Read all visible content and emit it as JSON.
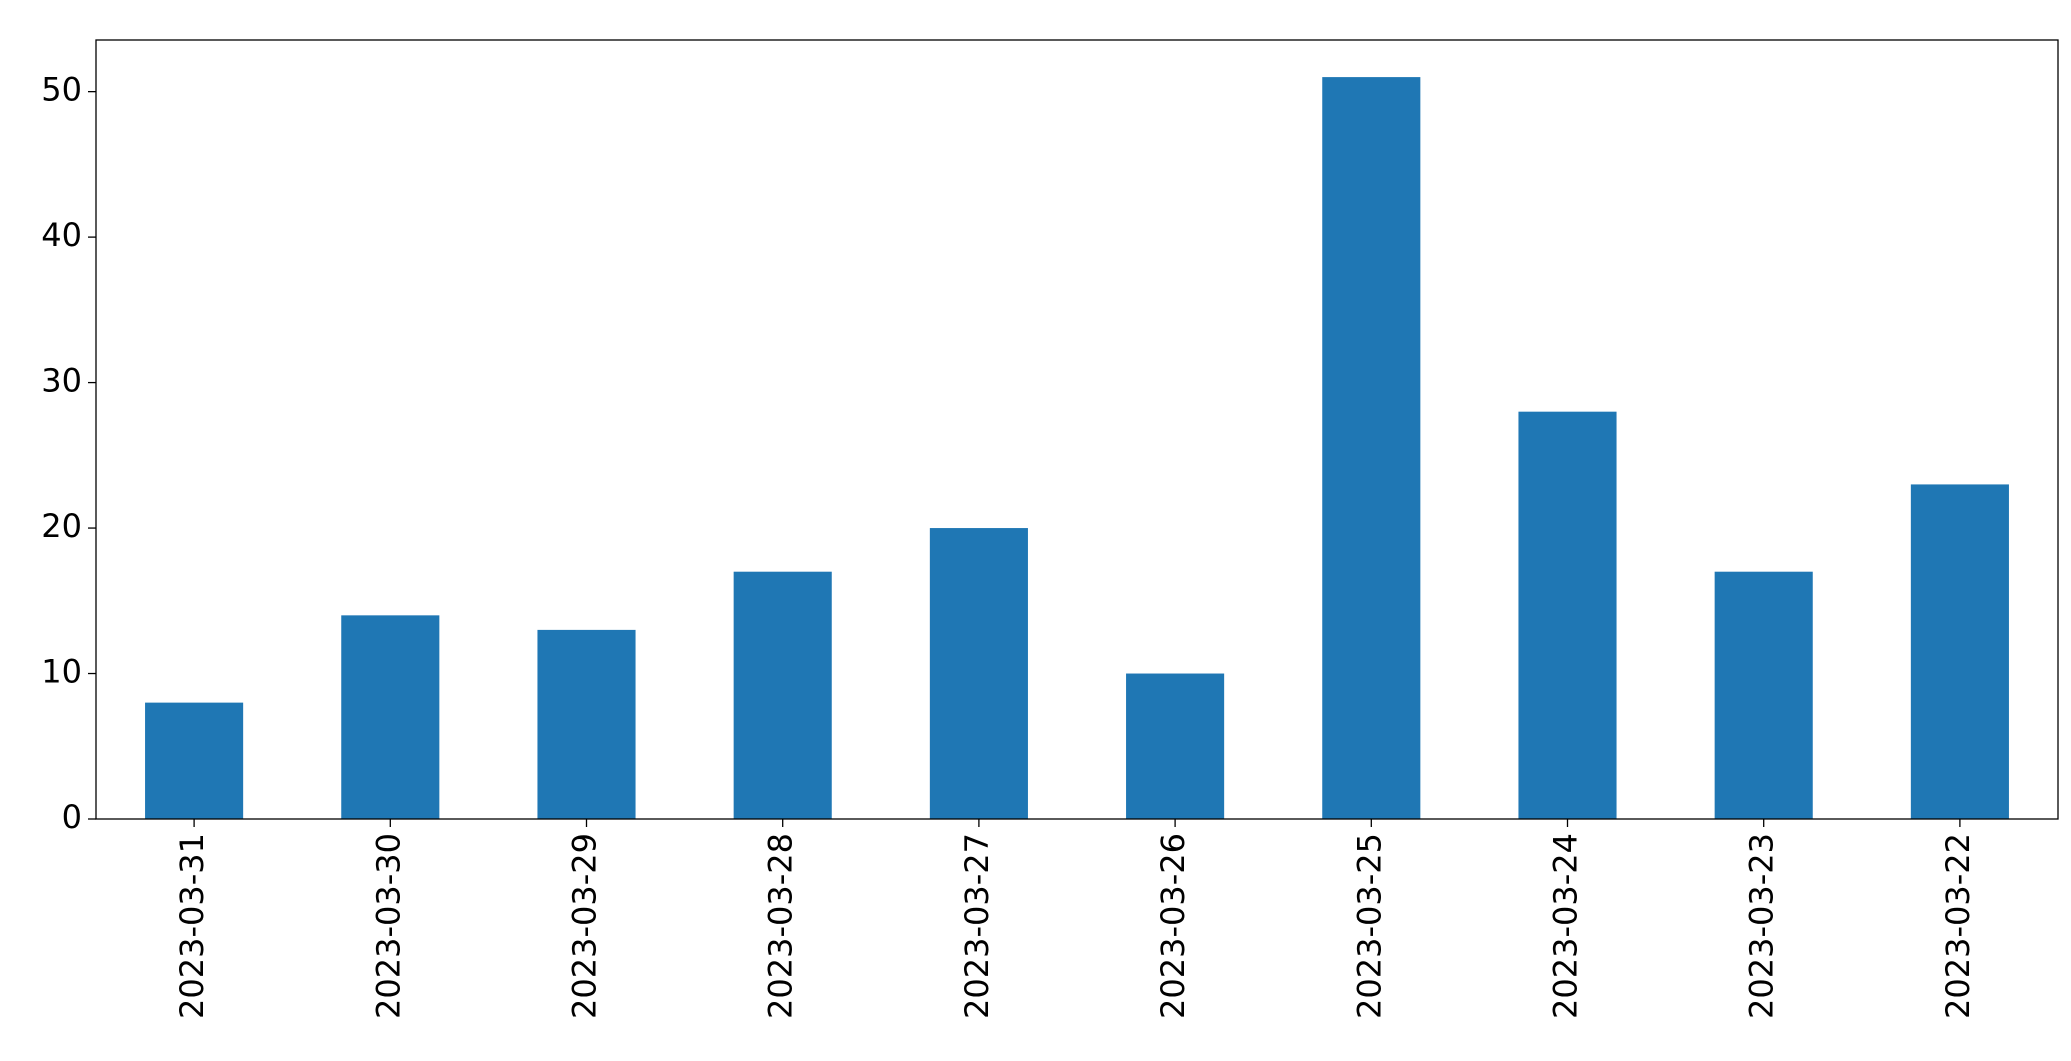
{
  "chart_data": {
    "type": "bar",
    "categories": [
      "2023-03-31",
      "2023-03-30",
      "2023-03-29",
      "2023-03-28",
      "2023-03-27",
      "2023-03-26",
      "2023-03-25",
      "2023-03-24",
      "2023-03-23",
      "2023-03-22"
    ],
    "values": [
      8,
      14,
      13,
      17,
      20,
      10,
      51,
      28,
      17,
      23
    ],
    "color": "#1f77b4",
    "ylim": [
      0,
      53.55
    ],
    "yticks": [
      0,
      10,
      20,
      30,
      40,
      50
    ],
    "grid": false
  }
}
